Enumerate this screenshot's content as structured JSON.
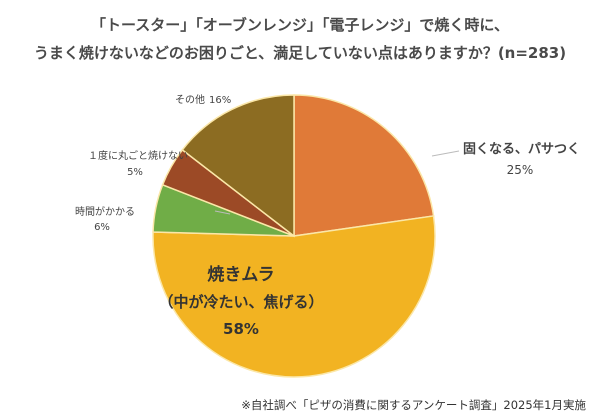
{
  "chart_data": {
    "type": "pie",
    "title_line1": "「トースター」「オーブンレンジ」「電子レンジ」で焼く時に、",
    "title_line2": "うまく焼けないなどのお困りごと、満足していない点はありますか？(n=283)",
    "slices": [
      {
        "label": "固くなる、パサつく",
        "value": 25,
        "value_label": "25%",
        "color": "#e07a38"
      },
      {
        "label": "焼きムラ",
        "label2": "（中が冷たい、焦げる）",
        "value": 58,
        "value_label": "58%",
        "color": "#f2b322"
      },
      {
        "label": "時間がかかる",
        "value": 6,
        "value_label": "6%",
        "color": "#70ad47"
      },
      {
        "label": "１度に丸ごと焼けない",
        "value": 5,
        "value_label": "5%",
        "color": "#9c4a26"
      },
      {
        "label": "その他",
        "value": 16,
        "value_label": "16%",
        "color": "#8c6c22"
      }
    ],
    "slice_border_color": "#fbe7a8",
    "start_angle": "12 o'clock",
    "direction": "clockwise"
  },
  "footnote": "※自社調べ「ピザの消費に関するアンケート調査」2025年1月実施"
}
